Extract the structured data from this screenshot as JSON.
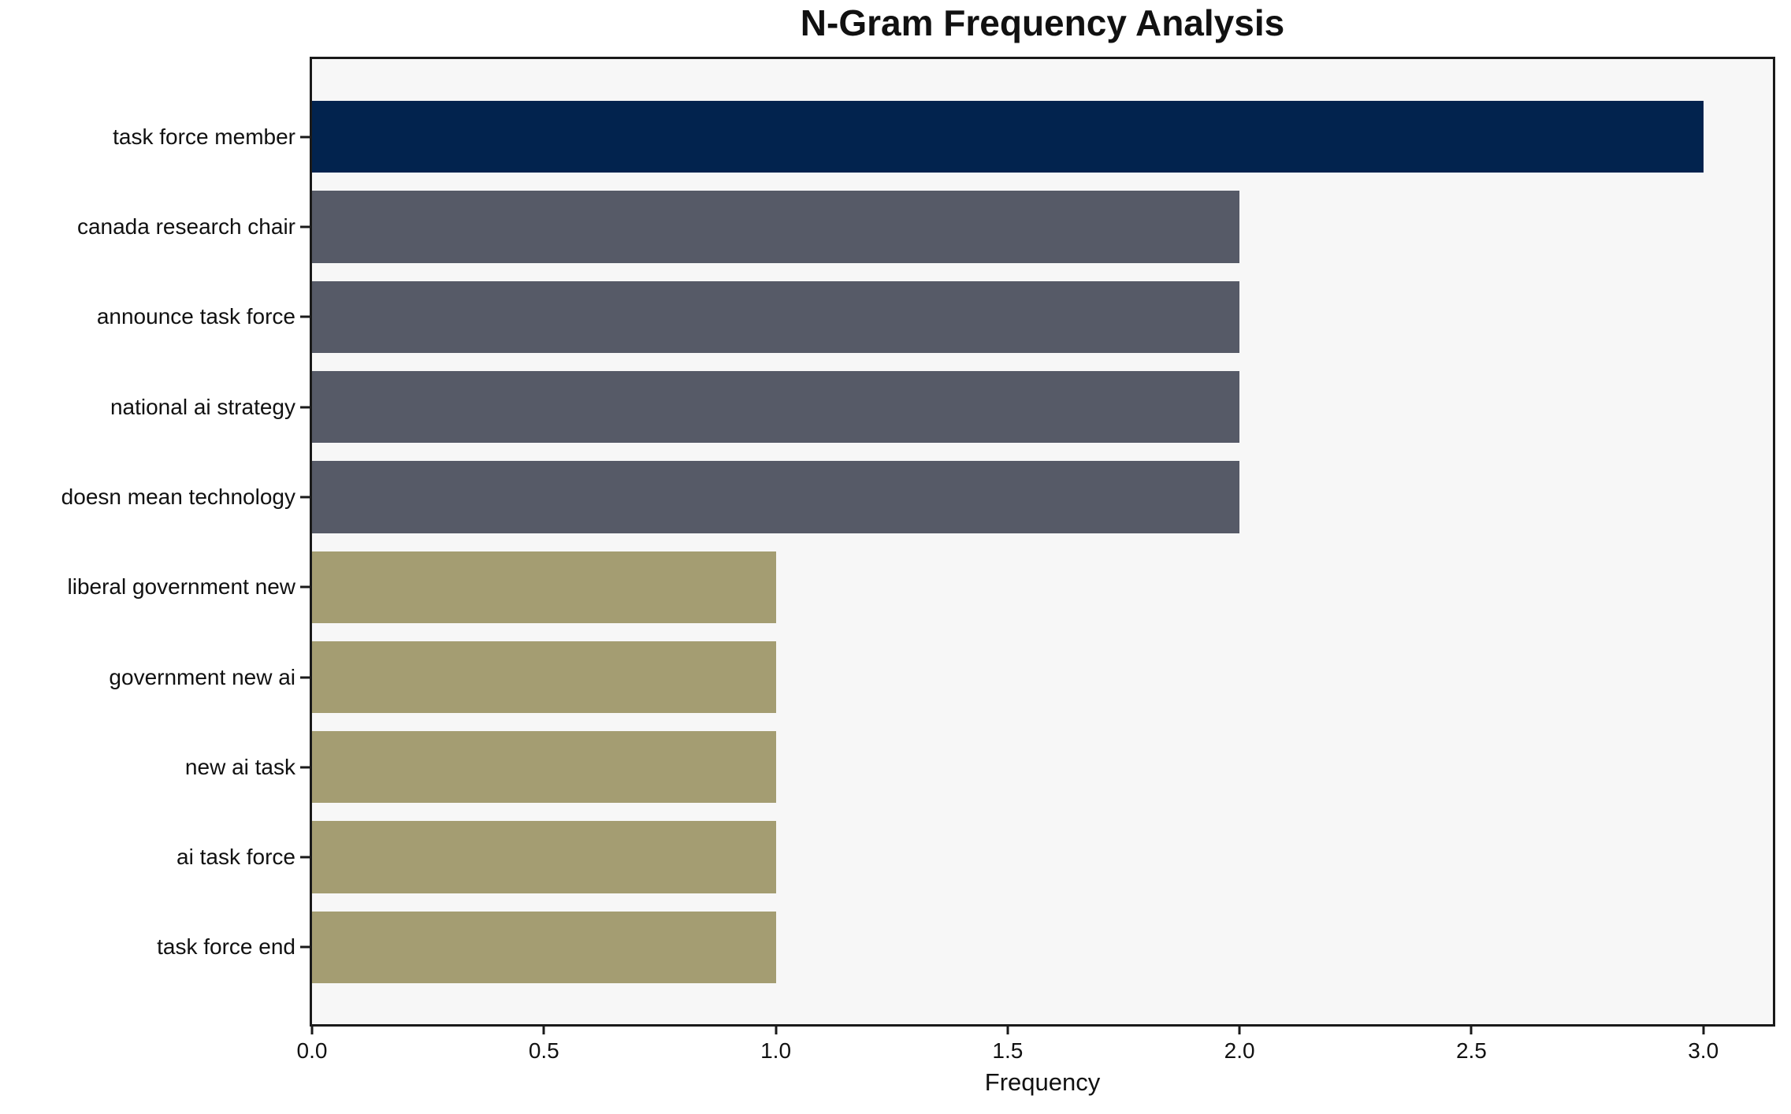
{
  "figure": {
    "title": "N-Gram Frequency Analysis",
    "xlabel": "Frequency"
  },
  "chart_data": {
    "type": "bar",
    "orientation": "horizontal",
    "title": "N-Gram Frequency Analysis",
    "xlabel": "Frequency",
    "ylabel": "",
    "categories": [
      "task force member",
      "canada research chair",
      "announce task force",
      "national ai strategy",
      "doesn mean technology",
      "liberal government new",
      "government new ai",
      "new ai task",
      "ai task force",
      "task force end"
    ],
    "values": [
      3,
      2,
      2,
      2,
      2,
      1,
      1,
      1,
      1,
      1
    ],
    "xlim": [
      0,
      3.15
    ],
    "xticks": [
      0.0,
      0.5,
      1.0,
      1.5,
      2.0,
      2.5,
      3.0
    ],
    "xtick_labels": [
      "0.0",
      "0.5",
      "1.0",
      "1.5",
      "2.0",
      "2.5",
      "3.0"
    ],
    "bar_colors": [
      "#02234e",
      "#565a67",
      "#565a67",
      "#565a67",
      "#565a67",
      "#a49d72",
      "#a49d72",
      "#a49d72",
      "#a49d72",
      "#a49d72"
    ],
    "colors": {
      "navy_accent": "#02234e",
      "slate_gray": "#565a67",
      "khaki": "#a49d72",
      "plot_background": "#f7f7f7",
      "figure_background": "#ffffff",
      "spine": "#1a1a1a",
      "text": "#111111"
    },
    "grid": false,
    "legend": false
  }
}
